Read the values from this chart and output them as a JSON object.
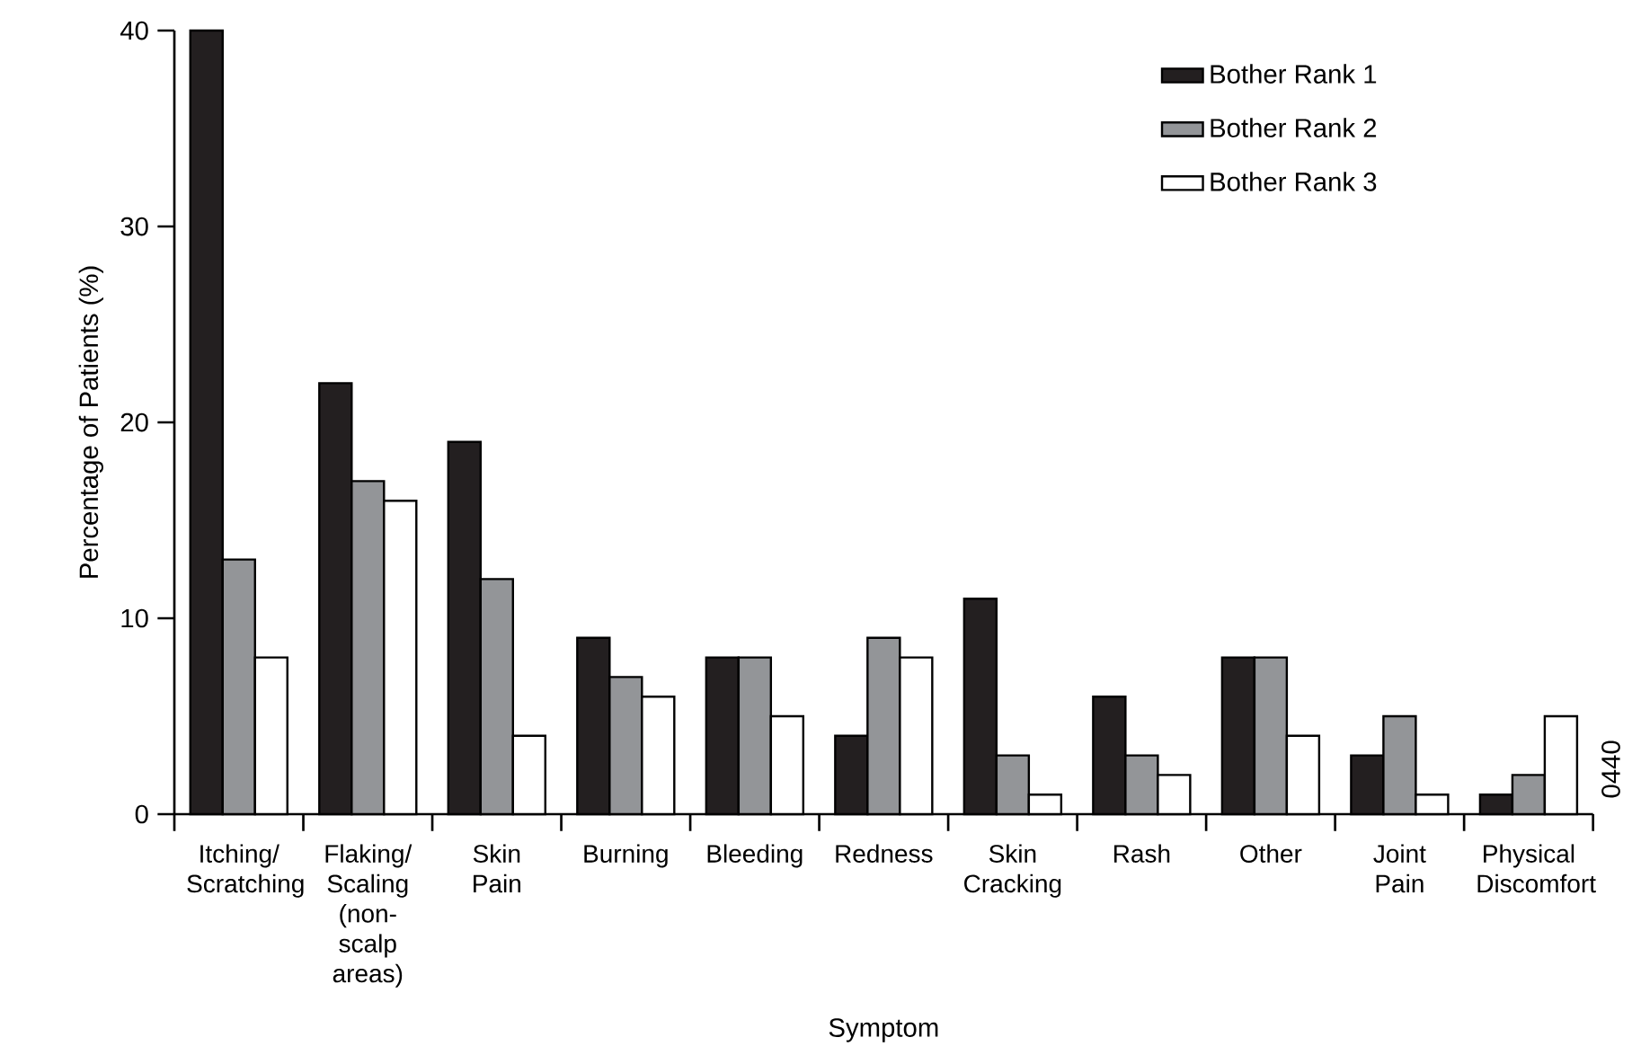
{
  "chart_data": {
    "type": "bar",
    "xlabel": "Symptom",
    "ylabel": "Percentage of Patients (%)",
    "categories": [
      "Itching/ Scratching",
      "Flaking/ Scaling (non-scalp areas)",
      "Skin Pain",
      "Burning",
      "Bleeding",
      "Redness",
      "Skin Cracking",
      "Rash",
      "Other",
      "Joint Pain",
      "Physical Discomfort"
    ],
    "series": [
      {
        "name": "Bother Rank 1",
        "color": "#231f20",
        "values": [
          40,
          22,
          19,
          9,
          8,
          4,
          11,
          6,
          8,
          3,
          1
        ]
      },
      {
        "name": "Bother Rank 2",
        "color": "#939598",
        "values": [
          13,
          17,
          12,
          7,
          8,
          9,
          3,
          3,
          8,
          5,
          2
        ]
      },
      {
        "name": "Bother Rank 3",
        "color": "#ffffff",
        "values": [
          8,
          16,
          4,
          6,
          5,
          8,
          1,
          2,
          4,
          1,
          5
        ]
      }
    ],
    "ylim": [
      0,
      40
    ],
    "yticks": [
      0,
      10,
      20,
      30,
      40
    ],
    "legend": "top right",
    "grid": false,
    "annotations": [
      "0440"
    ]
  }
}
